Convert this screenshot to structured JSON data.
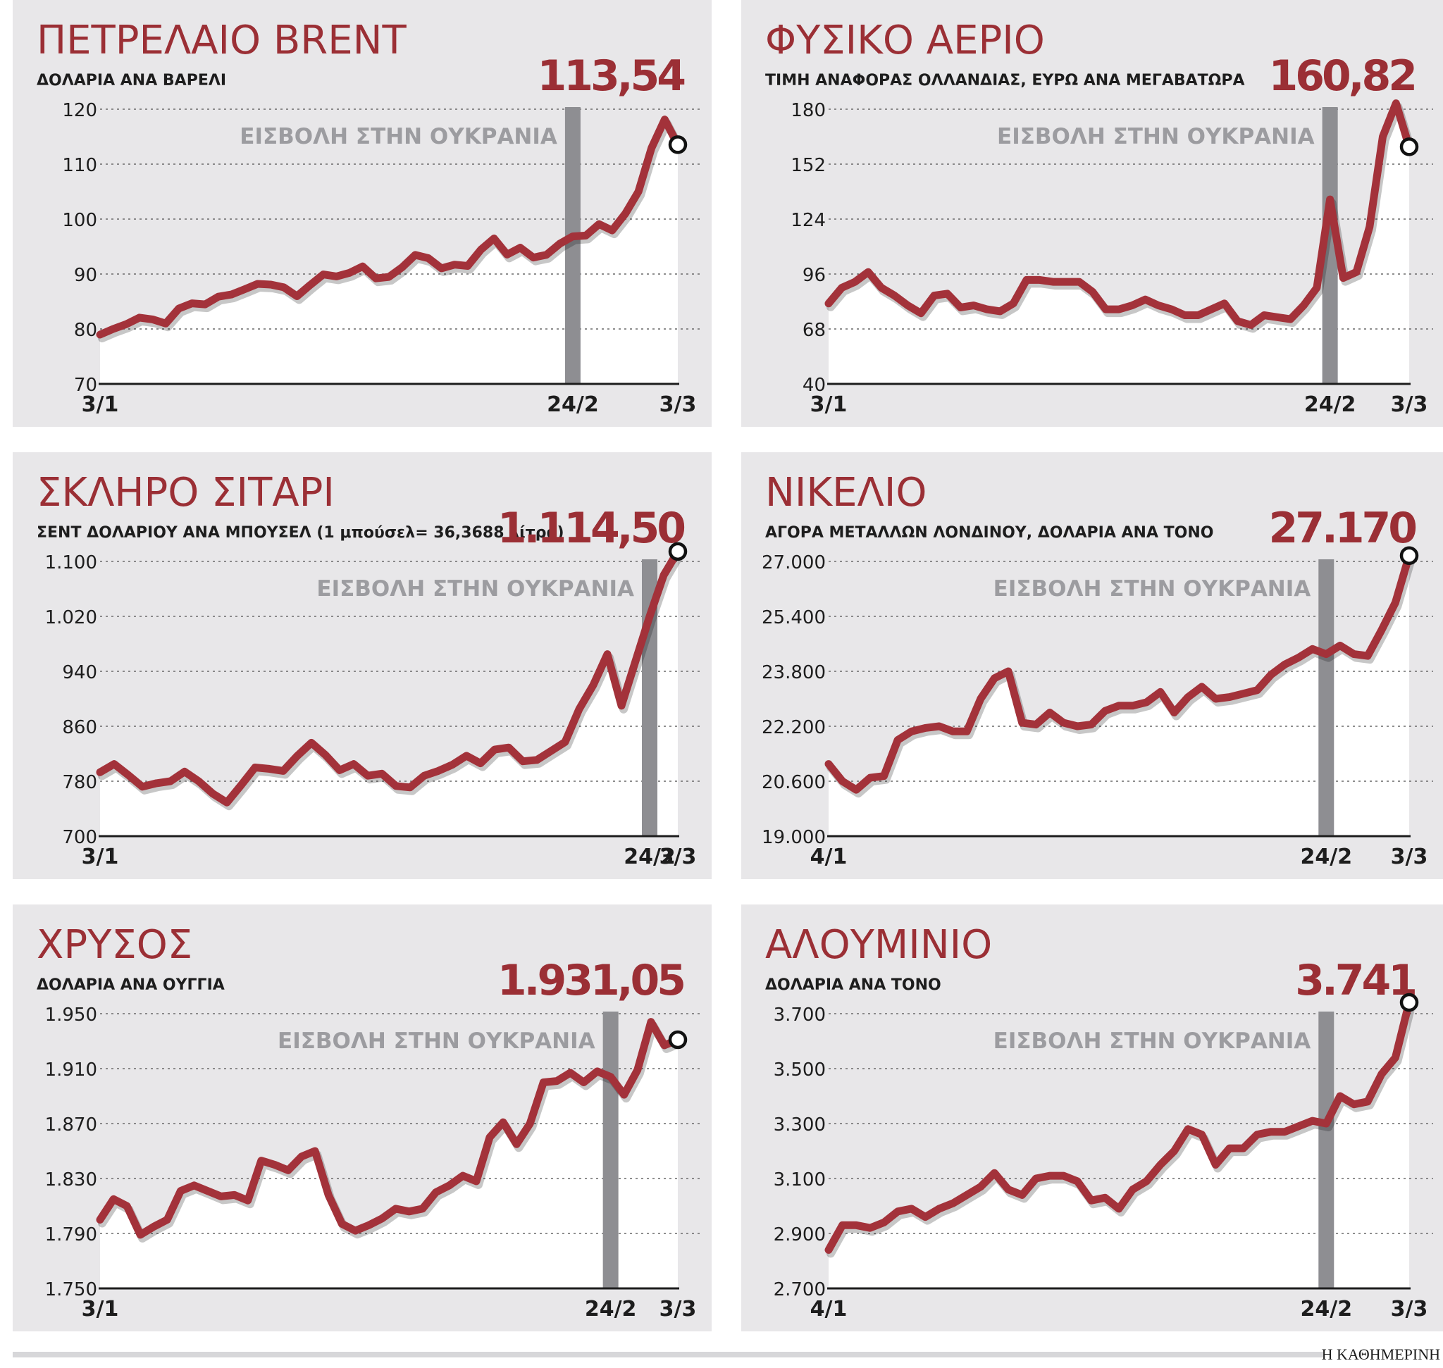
{
  "colors": {
    "line": "#a3323a",
    "event_band": "#8e8e92",
    "panel_bg": "#e8e7e9",
    "grid": "#6a6a6a",
    "title": "#9b2f35"
  },
  "footer": {
    "credit": "Η ΚΑΘΗΜΕΡΙΝΗ"
  },
  "chart_data": [
    {
      "type": "line",
      "title": "ΠΕΤΡΕΛΑΙΟ BRENT",
      "subtitle": "ΔΟΛΑΡΙΑ ΑΝΑ ΒΑΡΕΛΙ",
      "last_value_label": "113,54",
      "event_label": "ΕΙΣΒΟΛΗ ΣΤΗΝ ΟΥΚΡΑΝΙΑ",
      "ylim": [
        70,
        120
      ],
      "yticks": [
        "70",
        "80",
        "90",
        "100",
        "110",
        "120"
      ],
      "x_labels": [
        "3/1",
        "24/2",
        "3/3"
      ],
      "event_index": 36,
      "values": [
        78.98,
        80.0,
        80.87,
        82.07,
        81.75,
        81.0,
        83.72,
        84.67,
        84.47,
        85.87,
        86.27,
        87.22,
        88.2,
        88.08,
        87.58,
        85.96,
        88.0,
        89.92,
        89.56,
        90.22,
        91.38,
        89.2,
        89.48,
        91.2,
        93.48,
        92.88,
        91.04,
        91.7,
        91.48,
        94.44,
        96.48,
        93.54,
        94.8,
        93.0,
        93.5,
        95.5,
        96.84,
        97.0,
        99.08,
        97.93,
        100.99,
        105.0,
        112.93,
        118.11,
        113.54
      ]
    },
    {
      "type": "line",
      "title": "ΦΥΣΙΚΟ ΑΕΡΙΟ",
      "subtitle": "ΤΙΜΗ ΑΝΑΦΟΡΑΣ ΟΛΛΑΝΔΙΑΣ, ΕΥΡΩ ΑΝΑ ΜΕΓΑΒΑΤΩΡΑ",
      "last_value_label": "160,82",
      "event_label": "ΕΙΣΒΟΛΗ ΣΤΗΝ ΟΥΚΡΑΝΙΑ",
      "ylim": [
        40,
        180
      ],
      "yticks": [
        "40",
        "68",
        "96",
        "124",
        "152",
        "180"
      ],
      "x_labels": [
        "3/1",
        "24/2",
        "3/3"
      ],
      "event_index": 38,
      "values": [
        81.0,
        89.0,
        92.0,
        97.0,
        89.0,
        85.0,
        80.0,
        76.0,
        85.0,
        86.0,
        79.0,
        80.0,
        78.0,
        77.0,
        81.0,
        93.0,
        93.0,
        92.0,
        92.0,
        92.0,
        87.0,
        78.0,
        78.0,
        80.0,
        83.0,
        80.0,
        78.0,
        75.0,
        75.0,
        78.0,
        81.0,
        72.0,
        70.0,
        75.0,
        74.0,
        73.0,
        80.0,
        89.0,
        134.0,
        94.0,
        97.0,
        120.0,
        166.0,
        183.0,
        160.82
      ]
    },
    {
      "type": "line",
      "title": "ΣΚΛΗΡΟ ΣΙΤΑΡΙ",
      "subtitle": "ΣΕΝΤ ΔΟΛΑΡΙΟΥ ΑΝΑ ΜΠΟΥΣΕΛ (1 μπούσελ= 36,3688 λίτρα)",
      "last_value_label": "1.114,50",
      "event_label": "ΕΙΣΒΟΛΗ ΣΤΗΝ ΟΥΚΡΑΝΙΑ",
      "ylim": [
        700,
        1100
      ],
      "yticks": [
        "700",
        "780",
        "860",
        "940",
        "1.020",
        "1.100"
      ],
      "x_labels": [
        "3/1",
        "24/2",
        "3/3"
      ],
      "event_index": 39,
      "values": [
        793.0,
        805.0,
        789.0,
        772.0,
        777.0,
        780.0,
        794.0,
        780.0,
        762.0,
        749.0,
        774.0,
        800.0,
        798.0,
        795.0,
        817.0,
        836.0,
        818.0,
        796.0,
        805.0,
        788.0,
        791.0,
        773.0,
        771.0,
        788.0,
        795.0,
        804.0,
        817.0,
        806.0,
        826.0,
        829.0,
        809.0,
        811.0,
        824.0,
        837.0,
        885.0,
        920.0,
        965.0,
        890.0,
        955.0,
        1020.0,
        1080.0,
        1114.5
      ]
    },
    {
      "type": "line",
      "title": "ΝΙΚΕΛΙΟ",
      "subtitle": "ΑΓΟΡΑ ΜΕΤΑΛΛΩΝ ΛΟΝΔΙΝΟΥ, ΔΟΛΑΡΙΑ ΑΝΑ ΤΟΝΟ",
      "last_value_label": "27.170",
      "event_label": "ΕΙΣΒΟΛΗ ΣΤΗΝ ΟΥΚΡΑΝΙΑ",
      "ylim": [
        19000,
        27000
      ],
      "yticks": [
        "19.000",
        "20.600",
        "22.200",
        "23.800",
        "25.400",
        "27.000"
      ],
      "x_labels": [
        "4/1",
        "24/2",
        "3/3"
      ],
      "event_index": 36,
      "values": [
        21100,
        20600,
        20350,
        20700,
        20750,
        21800,
        22050,
        22150,
        22200,
        22050,
        22050,
        23000,
        23600,
        23800,
        22300,
        22250,
        22600,
        22300,
        22200,
        22250,
        22650,
        22800,
        22800,
        22900,
        23200,
        22600,
        23050,
        23350,
        23000,
        23050,
        23150,
        23250,
        23700,
        24000,
        24200,
        24450,
        24300,
        24550,
        24300,
        24250,
        25000,
        25800,
        27170
      ]
    },
    {
      "type": "line",
      "title": "ΧΡΥΣΟΣ",
      "subtitle": "ΔΟΛΑΡΙΑ ΑΝΑ ΟΥΓΓΙΑ",
      "last_value_label": "1.931,05",
      "event_label": "ΕΙΣΒΟΛΗ ΣΤΗΝ ΟΥΚΡΑΝΙΑ",
      "ylim": [
        1750,
        1950
      ],
      "yticks": [
        "1.750",
        "1.790",
        "1.830",
        "1.870",
        "1.910",
        "1.950"
      ],
      "x_labels": [
        "3/1",
        "24/2",
        "3/3"
      ],
      "event_index": 38,
      "values": [
        1800.0,
        1815.0,
        1810.0,
        1789.0,
        1795.0,
        1800.0,
        1821.0,
        1825.0,
        1821.0,
        1817.0,
        1818.0,
        1814.0,
        1843.0,
        1840.0,
        1836.0,
        1846.0,
        1850.0,
        1818.0,
        1797.0,
        1792.0,
        1796.0,
        1801.0,
        1808.0,
        1806.0,
        1808.0,
        1820.0,
        1825.0,
        1832.0,
        1828.0,
        1860.0,
        1871.0,
        1855.0,
        1870.0,
        1900.0,
        1901.0,
        1907.0,
        1900.0,
        1908.0,
        1904.0,
        1891.0,
        1909.0,
        1944.0,
        1927.0,
        1931.05
      ]
    },
    {
      "type": "line",
      "title": "ΑΛΟΥΜΙΝΙΟ",
      "subtitle": "ΔΟΛΑΡΙΑ ΑΝΑ ΤΟΝΟ",
      "last_value_label": "3.741",
      "event_label": "ΕΙΣΒΟΛΗ ΣΤΗΝ ΟΥΚΡΑΝΙΑ",
      "ylim": [
        2700,
        3700
      ],
      "yticks": [
        "2.700",
        "2.900",
        "3.100",
        "3.300",
        "3.500",
        "3.700"
      ],
      "x_labels": [
        "4/1",
        "24/2",
        "3/3"
      ],
      "event_index": 36,
      "values": [
        2840,
        2930,
        2930,
        2920,
        2940,
        2980,
        2990,
        2960,
        2990,
        3010,
        3040,
        3070,
        3120,
        3060,
        3040,
        3100,
        3110,
        3110,
        3090,
        3020,
        3030,
        2990,
        3060,
        3090,
        3150,
        3200,
        3280,
        3260,
        3150,
        3210,
        3210,
        3260,
        3270,
        3270,
        3290,
        3310,
        3300,
        3400,
        3370,
        3380,
        3480,
        3540,
        3741
      ]
    }
  ]
}
